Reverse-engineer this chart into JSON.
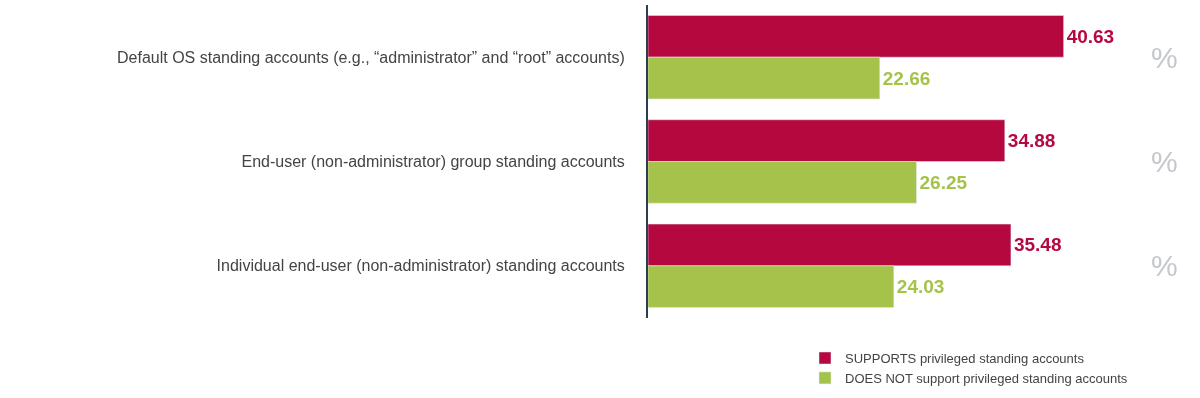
{
  "chart_data": {
    "type": "bar",
    "orientation": "horizontal",
    "categories": [
      "Default OS standing accounts (e.g., “administrator” and “root” accounts)",
      "End-user (non-administrator) group standing accounts",
      "Individual end-user (non-administrator) standing accounts"
    ],
    "series": [
      {
        "name": "SUPPORTS privileged standing accounts",
        "color": "#b5083f",
        "values": [
          40.63,
          34.88,
          35.48
        ]
      },
      {
        "name": "DOES NOT support privileged standing accounts",
        "color": "#a5c34a",
        "values": [
          22.66,
          26.25,
          24.03
        ]
      }
    ],
    "data_labels": true,
    "legend": "bottom right",
    "tick_labels": "y",
    "annotations": [
      "%",
      "%",
      "%"
    ]
  }
}
